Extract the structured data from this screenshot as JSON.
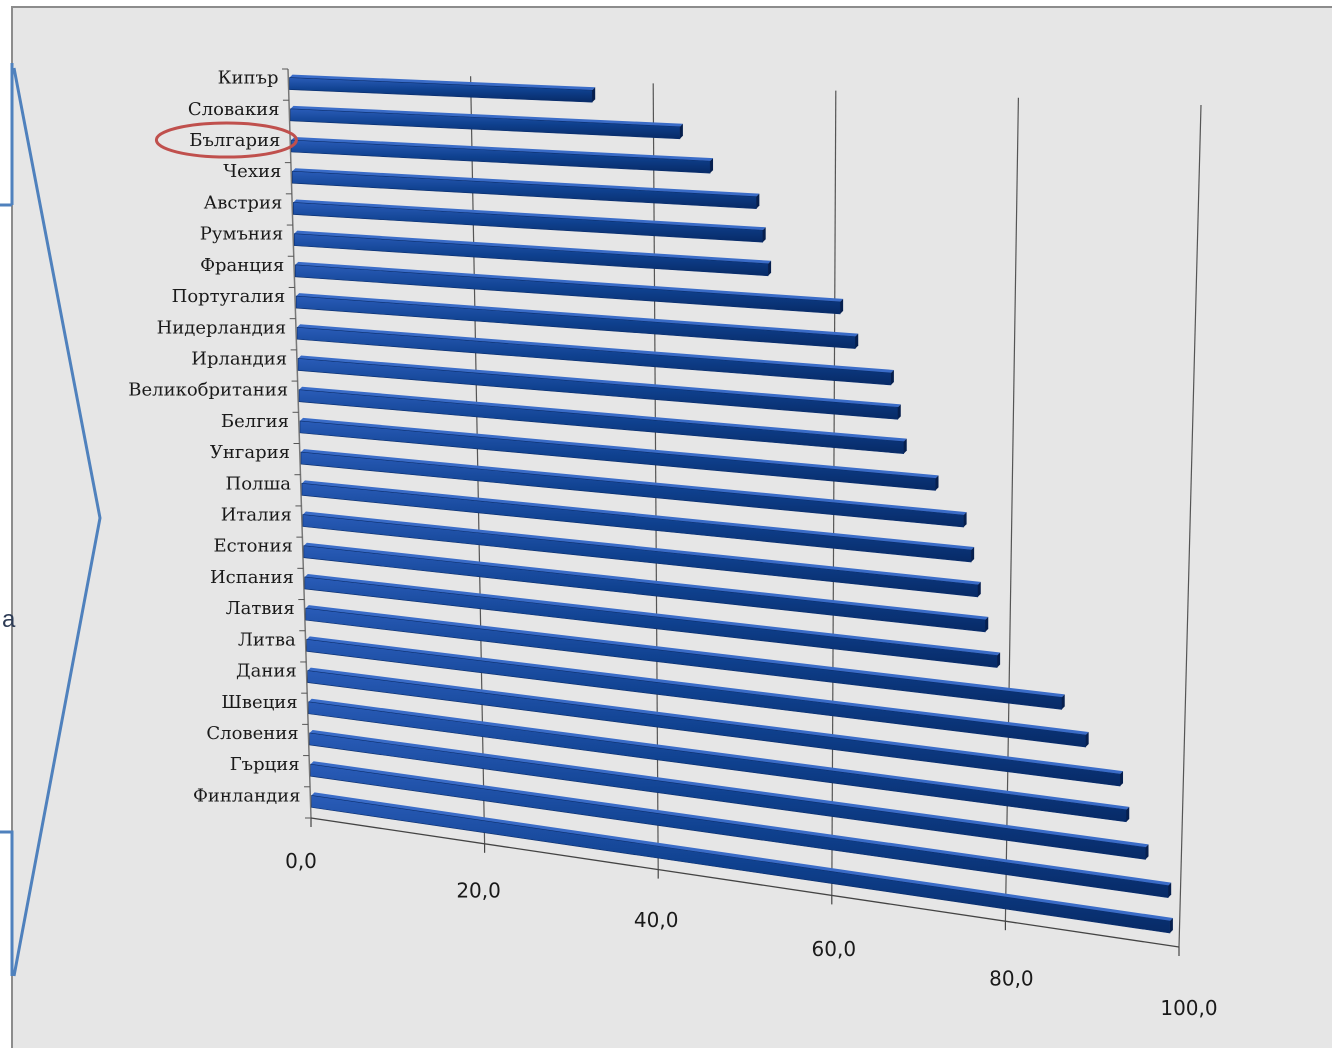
{
  "side_text": "a",
  "chart_data": {
    "type": "bar",
    "orientation": "horizontal",
    "style": "3d",
    "categories": [
      "Кипър",
      "Словакия",
      "България",
      "Чехия",
      "Австрия",
      "Румъния",
      "Франция",
      "Португалия",
      "Нидерландия",
      "Ирландия",
      "Великобритания",
      "Белгия",
      "Унгария",
      "Полша",
      "Италия",
      "Естония",
      "Испания",
      "Латвия",
      "Литва",
      "Дания",
      "Швеция",
      "Словения",
      "Гърция",
      "Финландия"
    ],
    "values": [
      33.3,
      42.9,
      46.2,
      51.3,
      52.0,
      52.6,
      60.6,
      62.3,
      66.3,
      67.1,
      67.8,
      71.4,
      74.6,
      75.5,
      76.3,
      77.2,
      78.6,
      86.0,
      88.8,
      92.8,
      93.6,
      95.9,
      98.6,
      98.9
    ],
    "highlight": "България",
    "ticks": [
      "0,0",
      "20,0",
      "40,0",
      "60,0",
      "80,0",
      "100,0"
    ],
    "xlim": [
      0,
      100
    ],
    "grid": true,
    "bar_color": "#0d3d91",
    "highlight_color": "#c0504d"
  }
}
